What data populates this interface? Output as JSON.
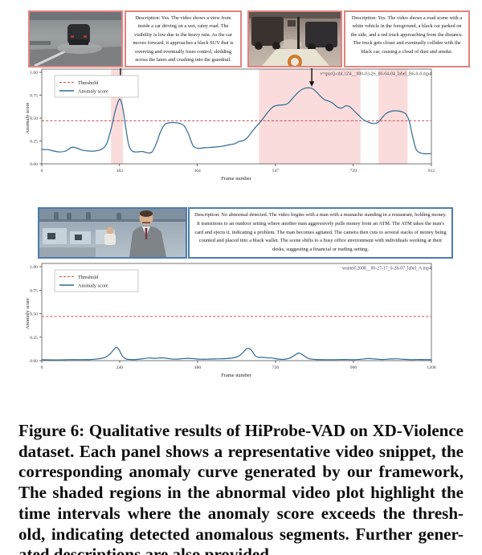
{
  "colors": {
    "abnormal_border": "#e2837f",
    "normal_border": "#4f7cae",
    "shade": "#fbdcdc",
    "threshold": "#c34f4f",
    "curve": "#2f6a93",
    "arrow": "#111111"
  },
  "panels": {
    "abnormal_left": {
      "image": "dashcam-rainy-road-crash",
      "description": "Description: Yes. The video shows a view from inside a car driving on a wet, rainy road. The visibility is low due to the heavy rain. As the car moves forward, it approaches a black SUV that is swerving and eventually loses control, skidding across the lanes and crashing into the guardrail."
    },
    "abnormal_right": {
      "image": "street-truck-collision",
      "description": "Description: Yes. The video shows a road scene with a white vehicle in the foreground, a black car parked on the side, and a red truck approaching from the distance. The truck gets closer and eventually collides with the black car, causing a cloud of dust and smoke."
    },
    "normal": {
      "image": "office-trading-scene",
      "description": "Description: No abnormal detected. The video begins with a man with a mustache standing in a restaurant, holding money. It transitions to an outdoor setting where another man aggressively pulls money from an ATM. The ATM takes the man's card and ejects it, indicating a problem. The man becomes agitated. The camera then cuts to several stacks of money being counted and placed into a black wallet. The scene shifts to a busy office environment with individuals working at their desks, suggesting a financial or trading setting."
    }
  },
  "chart_data": [
    {
      "type": "line",
      "title": "v=qnzQ-obL1Z4__#00-03-26_00-04-04_label_B6-0-0.mp4",
      "xlabel": "Frame number",
      "ylabel": "Anomaly score",
      "xlim": [
        0,
        912
      ],
      "ylim": [
        0,
        1.0
      ],
      "xticks": [
        0,
        182,
        364,
        547,
        729,
        912
      ],
      "yticks": [
        "0.00",
        "0.25",
        "0.50",
        "0.75",
        "1.00"
      ],
      "legend": [
        {
          "label": "Threshold",
          "style": "dashed"
        },
        {
          "label": "Anomaly score",
          "style": "solid"
        }
      ],
      "legend_position": "upper-left",
      "grid": false,
      "threshold": 0.47,
      "shaded_regions": [
        [
          162,
          190
        ],
        [
          508,
          746
        ],
        [
          788,
          856
        ]
      ],
      "annotations": [
        {
          "type": "arrow",
          "x": 184,
          "tip_score": 0.745
        },
        {
          "type": "arrow",
          "x": 632,
          "tip_score": 0.845
        }
      ],
      "series": [
        {
          "name": "Anomaly score",
          "points": [
            [
              0,
              0.155
            ],
            [
              14,
              0.155
            ],
            [
              28,
              0.14
            ],
            [
              42,
              0.13
            ],
            [
              56,
              0.14
            ],
            [
              70,
              0.18
            ],
            [
              80,
              0.175
            ],
            [
              95,
              0.15
            ],
            [
              110,
              0.14
            ],
            [
              125,
              0.14
            ],
            [
              140,
              0.16
            ],
            [
              152,
              0.22
            ],
            [
              162,
              0.38
            ],
            [
              172,
              0.58
            ],
            [
              180,
              0.69
            ],
            [
              184,
              0.7
            ],
            [
              190,
              0.6
            ],
            [
              197,
              0.38
            ],
            [
              204,
              0.2
            ],
            [
              212,
              0.14
            ],
            [
              222,
              0.13
            ],
            [
              235,
              0.135
            ],
            [
              248,
              0.12
            ],
            [
              258,
              0.13
            ],
            [
              268,
              0.22
            ],
            [
              278,
              0.35
            ],
            [
              288,
              0.43
            ],
            [
              300,
              0.45
            ],
            [
              312,
              0.45
            ],
            [
              324,
              0.44
            ],
            [
              334,
              0.41
            ],
            [
              344,
              0.32
            ],
            [
              354,
              0.2
            ],
            [
              366,
              0.17
            ],
            [
              380,
              0.175
            ],
            [
              395,
              0.18
            ],
            [
              410,
              0.185
            ],
            [
              425,
              0.195
            ],
            [
              440,
              0.21
            ],
            [
              452,
              0.22
            ],
            [
              462,
              0.245
            ],
            [
              472,
              0.255
            ],
            [
              482,
              0.29
            ],
            [
              492,
              0.35
            ],
            [
              502,
              0.41
            ],
            [
              512,
              0.46
            ],
            [
              522,
              0.52
            ],
            [
              532,
              0.58
            ],
            [
              542,
              0.625
            ],
            [
              554,
              0.64
            ],
            [
              566,
              0.645
            ],
            [
              576,
              0.66
            ],
            [
              588,
              0.72
            ],
            [
              600,
              0.78
            ],
            [
              612,
              0.82
            ],
            [
              622,
              0.83
            ],
            [
              632,
              0.825
            ],
            [
              642,
              0.79
            ],
            [
              652,
              0.74
            ],
            [
              662,
              0.7
            ],
            [
              672,
              0.685
            ],
            [
              682,
              0.66
            ],
            [
              692,
              0.62
            ],
            [
              702,
              0.61
            ],
            [
              712,
              0.635
            ],
            [
              722,
              0.62
            ],
            [
              732,
              0.575
            ],
            [
              742,
              0.53
            ],
            [
              752,
              0.485
            ],
            [
              764,
              0.455
            ],
            [
              776,
              0.44
            ],
            [
              786,
              0.45
            ],
            [
              796,
              0.5
            ],
            [
              806,
              0.55
            ],
            [
              818,
              0.575
            ],
            [
              830,
              0.58
            ],
            [
              842,
              0.57
            ],
            [
              852,
              0.545
            ],
            [
              860,
              0.47
            ],
            [
              868,
              0.3
            ],
            [
              876,
              0.16
            ],
            [
              886,
              0.12
            ],
            [
              898,
              0.11
            ],
            [
              912,
              0.112
            ]
          ]
        }
      ]
    },
    {
      "type": "line",
      "title": "wanted.2008__#0-27-17_0-28-07_label_A.mp4",
      "xlabel": "Frame number",
      "ylabel": "Anomaly score",
      "xlim": [
        0,
        1200
      ],
      "ylim": [
        0,
        1.0
      ],
      "xticks": [
        0,
        240,
        480,
        720,
        960,
        1200
      ],
      "yticks": [
        "0.00",
        "0.25",
        "0.50",
        "0.75",
        "1.00"
      ],
      "legend": [
        {
          "label": "Threshold",
          "style": "dashed"
        },
        {
          "label": "Anomaly score",
          "style": "solid"
        }
      ],
      "legend_position": "upper-left",
      "grid": false,
      "threshold": 0.47,
      "shaded_regions": [],
      "annotations": [],
      "series": [
        {
          "name": "Anomaly score",
          "points": [
            [
              0,
              0.01
            ],
            [
              40,
              0.008
            ],
            [
              80,
              0.01
            ],
            [
              120,
              0.01
            ],
            [
              150,
              0.012
            ],
            [
              175,
              0.02
            ],
            [
              195,
              0.035
            ],
            [
              210,
              0.07
            ],
            [
              222,
              0.12
            ],
            [
              230,
              0.14
            ],
            [
              238,
              0.115
            ],
            [
              248,
              0.05
            ],
            [
              258,
              0.02
            ],
            [
              272,
              0.012
            ],
            [
              290,
              0.012
            ],
            [
              310,
              0.02
            ],
            [
              330,
              0.028
            ],
            [
              350,
              0.025
            ],
            [
              370,
              0.03
            ],
            [
              390,
              0.022
            ],
            [
              410,
              0.015
            ],
            [
              430,
              0.02
            ],
            [
              450,
              0.025
            ],
            [
              470,
              0.02
            ],
            [
              490,
              0.015
            ],
            [
              510,
              0.015
            ],
            [
              530,
              0.018
            ],
            [
              550,
              0.02
            ],
            [
              570,
              0.022
            ],
            [
              590,
              0.03
            ],
            [
              605,
              0.045
            ],
            [
              618,
              0.08
            ],
            [
              630,
              0.125
            ],
            [
              638,
              0.13
            ],
            [
              648,
              0.1
            ],
            [
              658,
              0.05
            ],
            [
              668,
              0.035
            ],
            [
              680,
              0.035
            ],
            [
              695,
              0.03
            ],
            [
              710,
              0.028
            ],
            [
              725,
              0.018
            ],
            [
              745,
              0.014
            ],
            [
              762,
              0.025
            ],
            [
              778,
              0.055
            ],
            [
              790,
              0.08
            ],
            [
              800,
              0.07
            ],
            [
              812,
              0.04
            ],
            [
              825,
              0.02
            ],
            [
              845,
              0.012
            ],
            [
              870,
              0.01
            ],
            [
              900,
              0.01
            ],
            [
              930,
              0.012
            ],
            [
              960,
              0.01
            ],
            [
              985,
              0.015
            ],
            [
              1005,
              0.022
            ],
            [
              1025,
              0.018
            ],
            [
              1050,
              0.012
            ],
            [
              1075,
              0.018
            ],
            [
              1095,
              0.02
            ],
            [
              1115,
              0.014
            ],
            [
              1140,
              0.01
            ],
            [
              1165,
              0.012
            ],
            [
              1200,
              0.01
            ]
          ]
        }
      ]
    }
  ],
  "caption": {
    "lines": [
      "Figure 6: Qualitative results of HiProbe-VAD on XD-Violence",
      "dataset. Each panel shows a representative video snippet, the",
      "corresponding anomaly curve generated by our framework,",
      "The shaded regions in the abnormal video plot highlight the",
      "time intervals where the anomaly score exceeds the thresh-",
      "old, indicating detected anomalous segments. Further gener-",
      "ated descriptions are also provided."
    ]
  }
}
